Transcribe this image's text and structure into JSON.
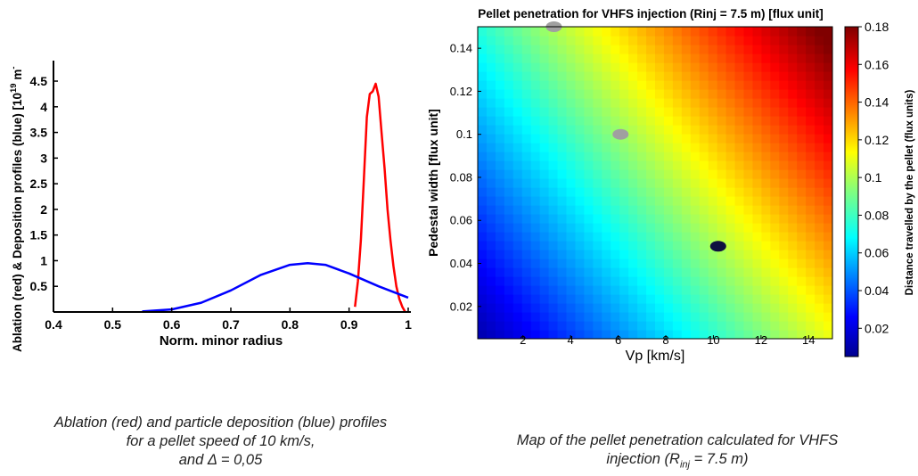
{
  "chart_data": [
    {
      "type": "line",
      "ylabel": "Ablation (red) & Deposition profiles (blue) [10",
      "ylabel_exp": "19",
      "ylabel_unit": "m",
      "ylabel_unit_exp": "-",
      "xlabel": "Norm. minor radius",
      "xlim": [
        0.4,
        1.0
      ],
      "ylim": [
        0,
        4.9
      ],
      "xticks": [
        "0.4",
        "0.5",
        "0.6",
        "0.7",
        "0.8",
        "0.9",
        "1"
      ],
      "yticks": [
        "0.5",
        "1",
        "1.5",
        "2",
        "2.5",
        "3",
        "3.5",
        "4",
        "4.5"
      ],
      "series": [
        {
          "color": "#ff0000",
          "x": [
            0.91,
            0.915,
            0.92,
            0.925,
            0.93,
            0.935,
            0.94,
            0.945,
            0.95,
            0.955,
            0.96,
            0.965,
            0.97,
            0.975,
            0.98,
            0.985,
            0.99,
            0.995
          ],
          "y": [
            0.1,
            0.6,
            1.4,
            2.6,
            3.8,
            4.25,
            4.3,
            4.45,
            4.2,
            3.5,
            2.8,
            2.0,
            1.4,
            0.9,
            0.5,
            0.25,
            0.1,
            0.0
          ]
        },
        {
          "color": "#0000ff",
          "x": [
            0.55,
            0.6,
            0.65,
            0.7,
            0.75,
            0.8,
            0.83,
            0.86,
            0.9,
            0.95,
            1.0
          ],
          "y": [
            0.01,
            0.05,
            0.18,
            0.42,
            0.72,
            0.92,
            0.95,
            0.92,
            0.75,
            0.5,
            0.28
          ]
        }
      ],
      "caption": [
        "Ablation (red) and particle deposition (blue) profiles",
        "for a pellet speed of 10 km/s,",
        "and Δ = 0,05"
      ]
    },
    {
      "type": "heatmap",
      "title": "Pellet penetration for VHFS injection (Rinj = 7.5 m) [flux unit]",
      "xlabel": "Vp [km/s]",
      "ylabel": "Pedestal width [flux unit]",
      "xlim": [
        0.1,
        15
      ],
      "ylim": [
        0.005,
        0.15
      ],
      "xticks": [
        "2",
        "4",
        "6",
        "8",
        "10",
        "12",
        "14"
      ],
      "yticks": [
        "0.02",
        "0.04",
        "0.06",
        "0.08",
        "0.1",
        "0.12",
        "0.14"
      ],
      "colorbar": {
        "label": "Distance travelled by the pellet (flux units)",
        "range": [
          0.005,
          0.18
        ],
        "ticks": [
          "0.02",
          "0.04",
          "0.06",
          "0.08",
          "0.1",
          "0.12",
          "0.14",
          "0.16",
          "0.18"
        ]
      },
      "markers": [
        {
          "x": 3.3,
          "y": 0.15,
          "color": "#a0a0a0"
        },
        {
          "x": 6.1,
          "y": 0.1,
          "color": "#a0a0a0"
        },
        {
          "x": 10.2,
          "y": 0.048,
          "color": "#101040"
        }
      ],
      "caption": [
        "Map of the pellet penetration calculated for VHFS",
        "injection (R",
        "inj",
        " = 7.5 m)"
      ]
    }
  ],
  "colors": {
    "jet": [
      "#00008f",
      "#0000ff",
      "#0080ff",
      "#00ffff",
      "#80ff80",
      "#ffff00",
      "#ff8000",
      "#ff0000",
      "#800000"
    ]
  }
}
